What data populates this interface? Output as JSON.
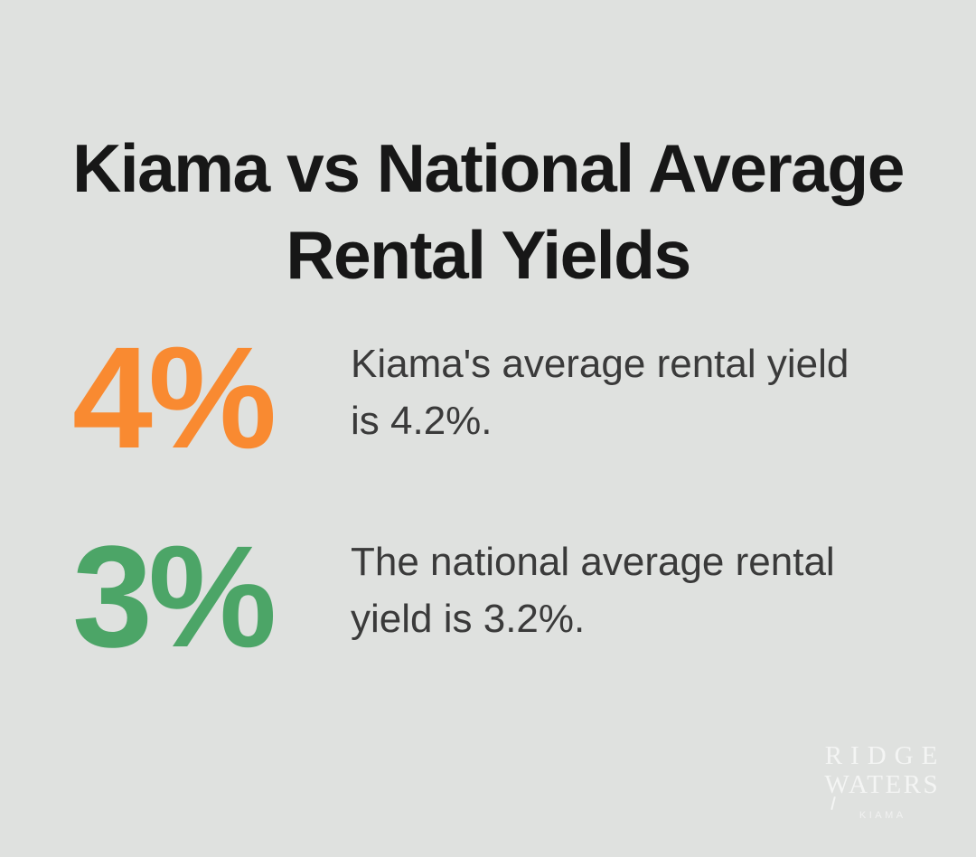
{
  "page": {
    "background_color": "#dfe1df",
    "text_color": "#3a3a3a",
    "title_color": "#171717"
  },
  "title": {
    "line1": "Kiama vs National Average",
    "line2": "Rental Yields",
    "full": "Kiama vs National Average Rental Yields"
  },
  "stats": [
    {
      "value": "4%",
      "color": "#f98a31",
      "lines": [
        "Kiama's average rental yield",
        "is 4.2%."
      ],
      "text": "Kiama's average rental yield is 4.2%."
    },
    {
      "value": "3%",
      "color": "#4ca567",
      "lines": [
        "The national average rental",
        "yield is 3.2%."
      ],
      "text": "The national average rental yield is 3.2%."
    }
  ],
  "logo": {
    "line1": "RIDGE",
    "line2": "WATERS",
    "subtext": "KIAMA",
    "color": "#f4f5f4"
  },
  "chart_data": {
    "type": "table",
    "title": "Kiama vs National Average Rental Yields",
    "categories": [
      "Kiama average rental yield",
      "National average rental yield"
    ],
    "values": [
      4.2,
      3.2
    ],
    "displayed_values": [
      "4%",
      "3%"
    ],
    "unit": "percent",
    "series_colors": [
      "#f98a31",
      "#4ca567"
    ]
  }
}
